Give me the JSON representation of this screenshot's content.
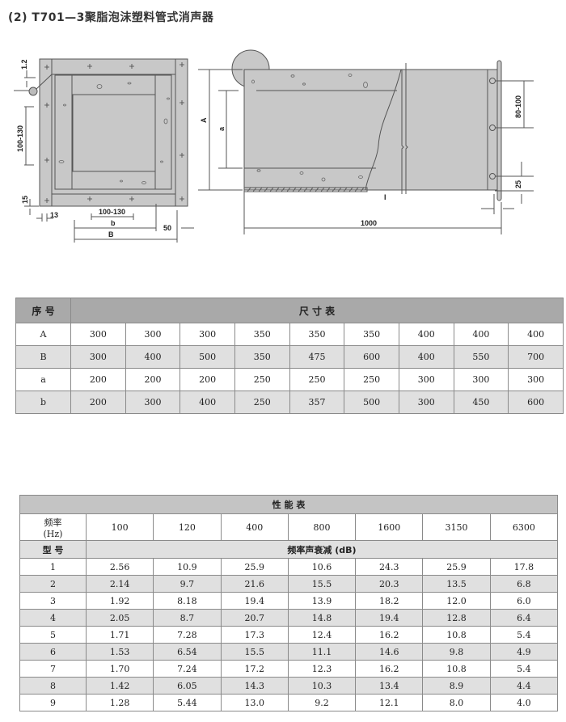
{
  "title": "(2) T701—3聚脂泡沫塑料管式消声器",
  "drawing": {
    "labels": {
      "t12": "1.2",
      "h100_130": "100-130",
      "t15": "15",
      "t13": "13",
      "w100_130": "100-130",
      "b": "b",
      "B": "B",
      "t50": "50",
      "A": "A",
      "a": "a",
      "L1000": "1000",
      "p80_100": "80-100",
      "t25": "25",
      "I": "I"
    },
    "colors": {
      "fill": "#c8c8c8",
      "line": "#555555"
    }
  },
  "size_table": {
    "header_left": "序 号",
    "header_title": "尺 寸 表",
    "rows": [
      {
        "label": "A",
        "values": [
          "300",
          "300",
          "300",
          "350",
          "350",
          "350",
          "400",
          "400",
          "400"
        ]
      },
      {
        "label": "B",
        "values": [
          "300",
          "400",
          "500",
          "350",
          "475",
          "600",
          "400",
          "550",
          "700"
        ]
      },
      {
        "label": "a",
        "values": [
          "200",
          "200",
          "200",
          "250",
          "250",
          "250",
          "300",
          "300",
          "300"
        ]
      },
      {
        "label": "b",
        "values": [
          "200",
          "300",
          "400",
          "250",
          "357",
          "500",
          "300",
          "450",
          "600"
        ]
      }
    ]
  },
  "perf_table": {
    "title": "性 能 表",
    "freq_label_1": "频率",
    "freq_label_2": "(Hz)",
    "freqs": [
      "100",
      "120",
      "400",
      "800",
      "1600",
      "3150",
      "6300"
    ],
    "model_label": "型 号",
    "attenuation_label": "频率声衰减 (dB)",
    "rows": [
      {
        "model": "1",
        "values": [
          "2.56",
          "10.9",
          "25.9",
          "10.6",
          "24.3",
          "25.9",
          "17.8"
        ]
      },
      {
        "model": "2",
        "values": [
          "2.14",
          "9.7",
          "21.6",
          "15.5",
          "20.3",
          "13.5",
          "6.8"
        ]
      },
      {
        "model": "3",
        "values": [
          "1.92",
          "8.18",
          "19.4",
          "13.9",
          "18.2",
          "12.0",
          "6.0"
        ]
      },
      {
        "model": "4",
        "values": [
          "2.05",
          "8.7",
          "20.7",
          "14.8",
          "19.4",
          "12.8",
          "6.4"
        ]
      },
      {
        "model": "5",
        "values": [
          "1.71",
          "7.28",
          "17.3",
          "12.4",
          "16.2",
          "10.8",
          "5.4"
        ]
      },
      {
        "model": "6",
        "values": [
          "1.53",
          "6.54",
          "15.5",
          "11.1",
          "14.6",
          "9.8",
          "4.9"
        ]
      },
      {
        "model": "7",
        "values": [
          "1.70",
          "7.24",
          "17.2",
          "12.3",
          "16.2",
          "10.8",
          "5.4"
        ]
      },
      {
        "model": "8",
        "values": [
          "1.42",
          "6.05",
          "14.3",
          "10.3",
          "13.4",
          "8.9",
          "4.4"
        ]
      },
      {
        "model": "9",
        "values": [
          "1.28",
          "5.44",
          "13.0",
          "9.2",
          "12.1",
          "8.0",
          "4.0"
        ]
      }
    ]
  }
}
